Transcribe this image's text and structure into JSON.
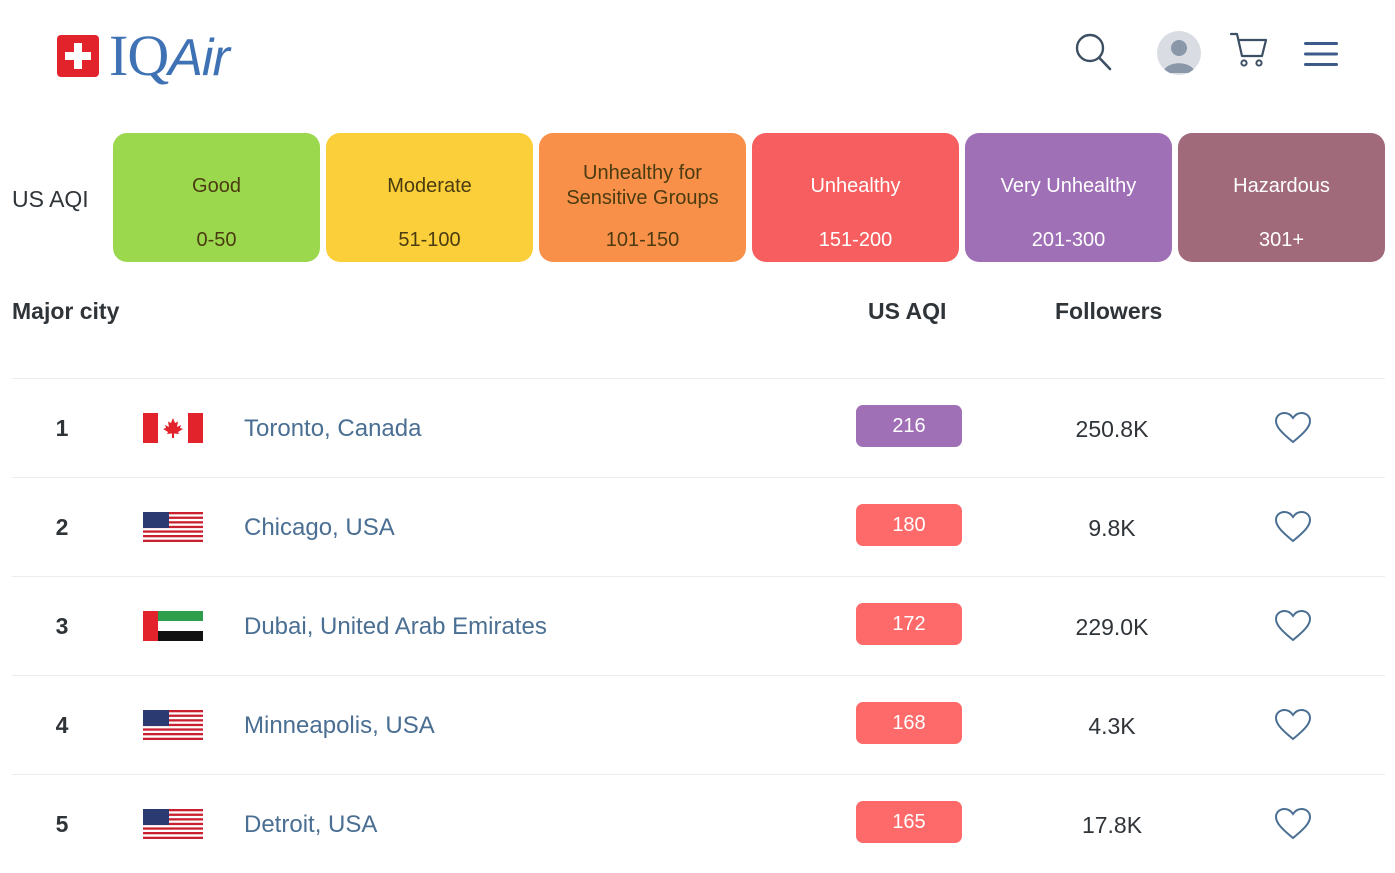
{
  "header": {
    "logo_text_iq": "IQ",
    "logo_text_air": "Air"
  },
  "legend": {
    "label": "US AQI",
    "levels": [
      {
        "name": "Good",
        "range": "0-50",
        "color": "#9cd84e"
      },
      {
        "name": "Moderate",
        "range": "51-100",
        "color": "#facf39"
      },
      {
        "name": "Unhealthy for Sensitive Groups",
        "range": "101-150",
        "color": "#f99049"
      },
      {
        "name": "Unhealthy",
        "range": "151-200",
        "color": "#f65e5f"
      },
      {
        "name": "Very Unhealthy",
        "range": "201-300",
        "color": "#a070b6"
      },
      {
        "name": "Hazardous",
        "range": "301+",
        "color": "#a06a7b"
      }
    ]
  },
  "table": {
    "headers": {
      "city": "Major city",
      "aqi": "US AQI",
      "followers": "Followers"
    },
    "rows": [
      {
        "rank": "1",
        "flag": "canada-flag",
        "city": "Toronto, Canada",
        "aqi": "216",
        "aqi_color": "#a070b6",
        "followers": "250.8K"
      },
      {
        "rank": "2",
        "flag": "usa-flag",
        "city": "Chicago, USA",
        "aqi": "180",
        "aqi_color": "#fe6a69",
        "followers": "9.8K"
      },
      {
        "rank": "3",
        "flag": "uae-flag",
        "city": "Dubai, United Arab Emirates",
        "aqi": "172",
        "aqi_color": "#fe6a69",
        "followers": "229.0K"
      },
      {
        "rank": "4",
        "flag": "usa-flag",
        "city": "Minneapolis, USA",
        "aqi": "168",
        "aqi_color": "#fe6a69",
        "followers": "4.3K"
      },
      {
        "rank": "5",
        "flag": "usa-flag",
        "city": "Detroit, USA",
        "aqi": "165",
        "aqi_color": "#fe6a69",
        "followers": "17.8K"
      }
    ]
  }
}
